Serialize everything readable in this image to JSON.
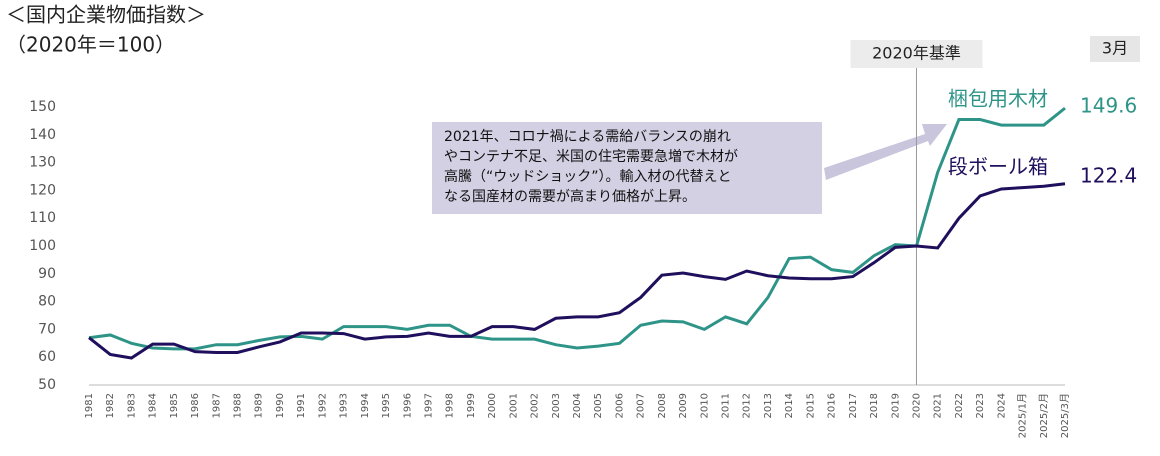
{
  "chart_data": {
    "type": "line",
    "title": "＜国内企業物価指数＞",
    "subtitle": "（2020年＝100）",
    "period_label": "3月",
    "reference_line": {
      "category": "2020",
      "label": "2020年基準"
    },
    "annotation": {
      "lines": [
        "2021年、コロナ禍による需給バランスの崩れ",
        "やコンテナ不足、米国の住宅需要急増で木材が",
        "高騰（“ウッドショック”）。輸入材の代替えと",
        "なる国産材の需要が高まり価格が上昇。"
      ]
    },
    "categories": [
      "1981",
      "1982",
      "1983",
      "1984",
      "1985",
      "1986",
      "1987",
      "1988",
      "1989",
      "1990",
      "1991",
      "1992",
      "1993",
      "1994",
      "1995",
      "1996",
      "1997",
      "1998",
      "1999",
      "2000",
      "2001",
      "2002",
      "2003",
      "2004",
      "2005",
      "2006",
      "2007",
      "2008",
      "2009",
      "2010",
      "2011",
      "2012",
      "2013",
      "2014",
      "2015",
      "2016",
      "2017",
      "2018",
      "2019",
      "2020",
      "2021",
      "2022",
      "2023",
      "2024",
      "2025/1月",
      "2025/2月",
      "2025/3月"
    ],
    "series": [
      {
        "name": "梱包用木材",
        "color": "#2e9488",
        "values": [
          67,
          68,
          65,
          63.3,
          63,
          63,
          64.5,
          64.5,
          66,
          67.3,
          67.5,
          66.5,
          71,
          71,
          71,
          70,
          71.5,
          71.5,
          67.5,
          66.5,
          66.5,
          66.5,
          64.5,
          63.3,
          64,
          65,
          71.5,
          73,
          72.7,
          70,
          74.5,
          72,
          81.5,
          95.5,
          96,
          91.5,
          90.5,
          96.5,
          100.5,
          100,
          126.5,
          145.5,
          145.5,
          143.5,
          143.5,
          143.5,
          149.6
        ]
      },
      {
        "name": "段ボール箱",
        "color": "#1f0f5c",
        "values": [
          67,
          61,
          59.7,
          64.7,
          64.7,
          62,
          61.7,
          61.7,
          63.7,
          65.5,
          68.7,
          68.7,
          68.5,
          66.5,
          67.3,
          67.5,
          68.7,
          67.5,
          67.5,
          71,
          71,
          70,
          74,
          74.5,
          74.5,
          76,
          81.5,
          89.5,
          90.3,
          89,
          88,
          91,
          89.3,
          88.5,
          88.2,
          88.2,
          89,
          94,
          99.5,
          100,
          99.3,
          110,
          118,
          120.5,
          121,
          121.5,
          122.4
        ]
      }
    ],
    "ylim": [
      50,
      150
    ],
    "yticks": [
      50,
      60,
      70,
      80,
      90,
      100,
      110,
      120,
      130,
      140,
      150
    ]
  }
}
